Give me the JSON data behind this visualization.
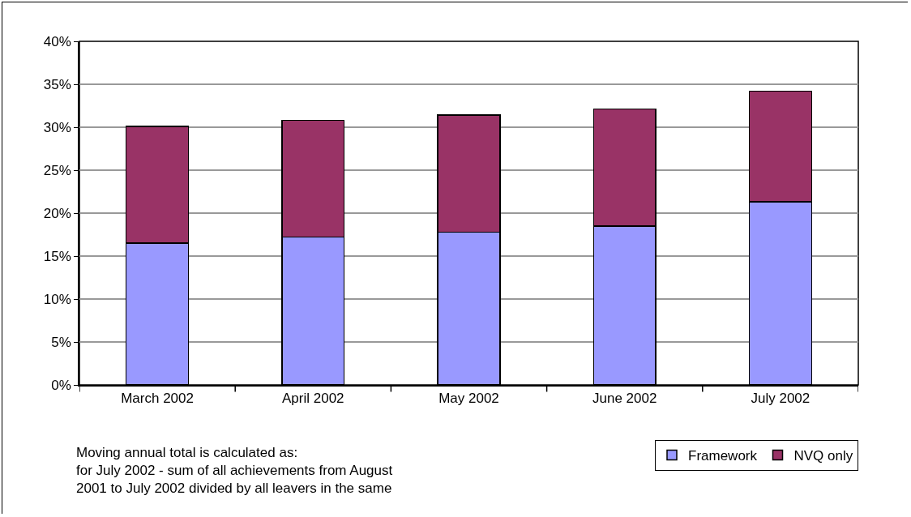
{
  "chart_data": {
    "type": "bar",
    "stacked": true,
    "categories": [
      "March 2002",
      "April 2002",
      "May 2002",
      "June 2002",
      "July 2002"
    ],
    "series": [
      {
        "name": "Framework",
        "color": "#9999ff",
        "values": [
          16.5,
          17.2,
          17.8,
          18.5,
          21.3
        ]
      },
      {
        "name": "NVQ only",
        "color": "#993366",
        "values": [
          13.6,
          13.6,
          13.6,
          13.6,
          12.9
        ]
      }
    ],
    "ylim": [
      0,
      40
    ],
    "yticks": [
      {
        "value": 0,
        "label": "0%"
      },
      {
        "value": 5,
        "label": "5%"
      },
      {
        "value": 10,
        "label": "10%"
      },
      {
        "value": 15,
        "label": "15%"
      },
      {
        "value": 20,
        "label": "20%"
      },
      {
        "value": 25,
        "label": "25%"
      },
      {
        "value": 30,
        "label": "30%"
      },
      {
        "value": 35,
        "label": "35%"
      },
      {
        "value": 40,
        "label": "40%"
      }
    ],
    "grid": "y",
    "legend": "bottom right",
    "annotations": [
      "Moving annual total is calculated as:\nfor July 2002 - sum of all achievements from August\n2001 to July 2002 divided by all leavers in the same"
    ]
  }
}
